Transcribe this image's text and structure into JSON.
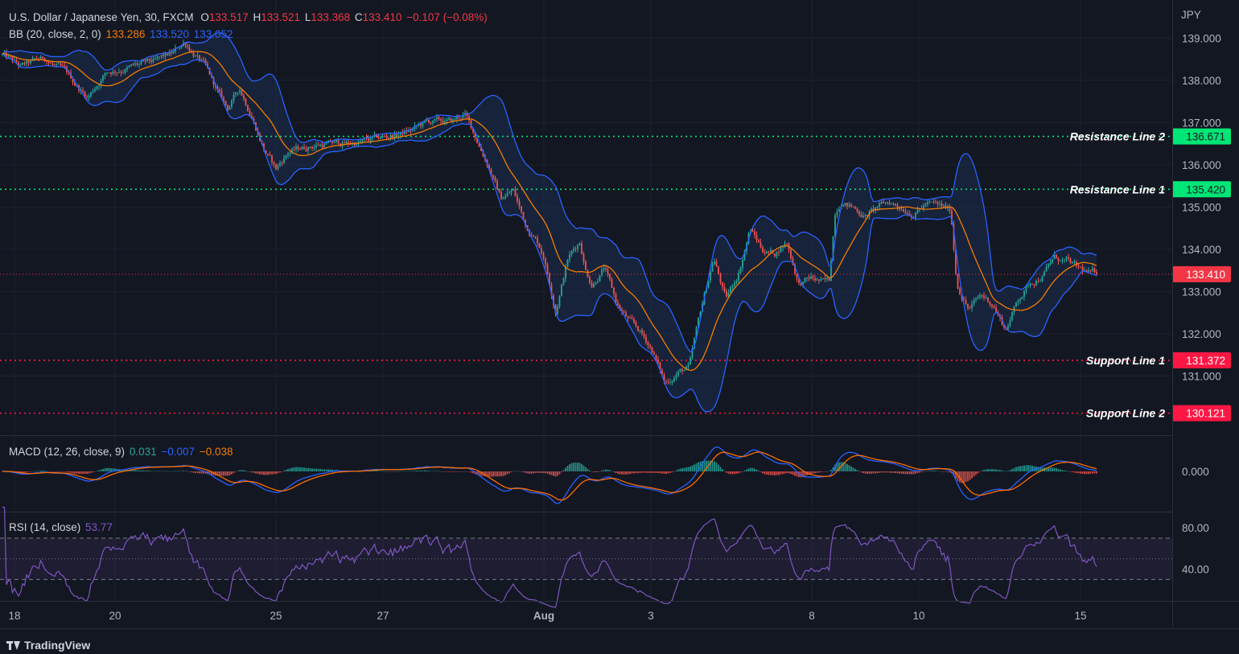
{
  "header": {
    "symbol": "U.S. Dollar / Japanese Yen, 30, FXCM",
    "o_label": "O",
    "o_value": "133.517",
    "h_label": "H",
    "h_value": "133.521",
    "l_label": "L",
    "l_value": "133.368",
    "c_label": "C",
    "c_value": "133.410",
    "change": "−0.107 (−0.08%)"
  },
  "bb_legend": {
    "label": "BB (20, close, 2, 0)",
    "basis": "133.286",
    "upper": "133.520",
    "lower": "133.052"
  },
  "macd_legend": {
    "label": "MACD (12, 26, close, 9)",
    "hist": "0.031",
    "macd": "−0.007",
    "signal": "−0.038"
  },
  "rsi_legend": {
    "label": "RSI (14, close)",
    "value": "53.77"
  },
  "footer": {
    "brand": "TradingView"
  },
  "colors": {
    "background": "#131722",
    "grid": "#1e222d",
    "bull": "#26a69a",
    "bear": "#ef5350",
    "bb_basis": "#f57c00",
    "bb_bands": "#2962ff",
    "bb_fill": "#1b2e4f",
    "resistance": "#00e676",
    "support": "#ff1744",
    "last_price": "#f23645",
    "macd": "#2962ff",
    "signal": "#ff6d00",
    "rsi": "#7e57c2"
  },
  "chart_data": [
    {
      "type": "candlestick",
      "name": "U.S. Dollar / Japanese Yen, 30, FXCM",
      "currency": "JPY",
      "ylim": [
        129.6,
        139.9
      ],
      "y_ticks": [
        "139.000",
        "138.000",
        "137.000",
        "136.000",
        "135.000",
        "134.000",
        "133.000",
        "132.000",
        "131.000"
      ],
      "x_tick_labels": [
        "18",
        "20",
        "25",
        "27",
        "Aug",
        "3",
        "8",
        "10",
        "15"
      ],
      "price_path": [
        [
          0,
          138.6
        ],
        [
          3,
          138.3
        ],
        [
          7,
          138.5
        ],
        [
          10,
          138.2
        ],
        [
          14,
          137.6
        ],
        [
          17,
          138.2
        ],
        [
          20,
          138.3
        ],
        [
          25,
          138.4
        ],
        [
          28,
          138.6
        ],
        [
          30,
          138.9
        ],
        [
          33,
          138.4
        ],
        [
          35,
          137.8
        ],
        [
          37,
          137.3
        ],
        [
          39,
          137.8
        ],
        [
          41,
          137.2
        ],
        [
          43,
          136.4
        ],
        [
          45,
          135.9
        ],
        [
          47,
          136.3
        ],
        [
          52,
          136.5
        ],
        [
          57,
          136.5
        ],
        [
          62,
          136.6
        ],
        [
          67,
          136.8
        ],
        [
          70,
          137.0
        ],
        [
          74,
          137.0
        ],
        [
          76,
          137.2
        ],
        [
          78,
          136.6
        ],
        [
          80,
          136.0
        ],
        [
          82,
          135.2
        ],
        [
          84,
          135.4
        ],
        [
          86,
          134.6
        ],
        [
          88,
          134.2
        ],
        [
          89,
          133.9
        ],
        [
          91,
          132.6
        ],
        [
          93,
          133.8
        ],
        [
          95,
          134.2
        ],
        [
          96,
          133.5
        ],
        [
          97,
          133.2
        ],
        [
          99,
          133.6
        ],
        [
          101,
          132.7
        ],
        [
          103,
          132.3
        ],
        [
          105,
          132.0
        ],
        [
          107,
          131.6
        ],
        [
          109,
          130.8
        ],
        [
          111,
          131.1
        ],
        [
          113,
          131.2
        ],
        [
          115,
          132.6
        ],
        [
          117,
          133.8
        ],
        [
          119,
          132.8
        ],
        [
          121,
          133.4
        ],
        [
          123,
          134.5
        ],
        [
          125,
          134.0
        ],
        [
          127,
          133.9
        ],
        [
          129,
          134.2
        ],
        [
          131,
          133.2
        ],
        [
          133,
          133.3
        ],
        [
          135,
          133.2
        ],
        [
          136,
          133.2
        ],
        [
          137,
          134.9
        ],
        [
          138,
          135.2
        ],
        [
          140,
          135.0
        ],
        [
          142,
          134.8
        ],
        [
          144,
          135.0
        ],
        [
          146,
          135.1
        ],
        [
          148,
          135.0
        ],
        [
          150,
          134.9
        ],
        [
          152,
          135.1
        ],
        [
          154,
          135.0
        ],
        [
          156,
          134.9
        ],
        [
          157,
          133.2
        ],
        [
          159,
          132.6
        ],
        [
          161,
          132.9
        ],
        [
          163,
          132.7
        ],
        [
          165,
          132.1
        ],
        [
          167,
          132.8
        ],
        [
          169,
          133.2
        ],
        [
          171,
          133.4
        ],
        [
          173,
          133.8
        ],
        [
          175,
          133.7
        ],
        [
          177,
          133.5
        ],
        [
          179,
          133.4
        ],
        [
          180,
          133.4
        ]
      ],
      "bollinger_bands": {
        "period": 20,
        "stddev": 2
      },
      "horizontal_lines": [
        {
          "name": "Resistance Line 2",
          "value": 136.671,
          "label": "136.671",
          "kind": "resistance"
        },
        {
          "name": "Resistance Line 1",
          "value": 135.42,
          "label": "135.420",
          "kind": "resistance"
        },
        {
          "name": "Support Line 1",
          "value": 131.372,
          "label": "131.372",
          "kind": "support"
        },
        {
          "name": "Support Line 2",
          "value": 130.121,
          "label": "130.121",
          "kind": "support"
        }
      ],
      "last_price": {
        "value": 133.41,
        "label": "133.410"
      }
    },
    {
      "type": "macd",
      "params": [
        12,
        26,
        9
      ],
      "y_ticks": [
        "0.000"
      ]
    },
    {
      "type": "line",
      "name": "RSI (14, close)",
      "ylim": [
        10,
        95
      ],
      "y_ticks": [
        "80.00",
        "40.00"
      ],
      "levels": [
        70,
        50,
        30
      ]
    }
  ]
}
